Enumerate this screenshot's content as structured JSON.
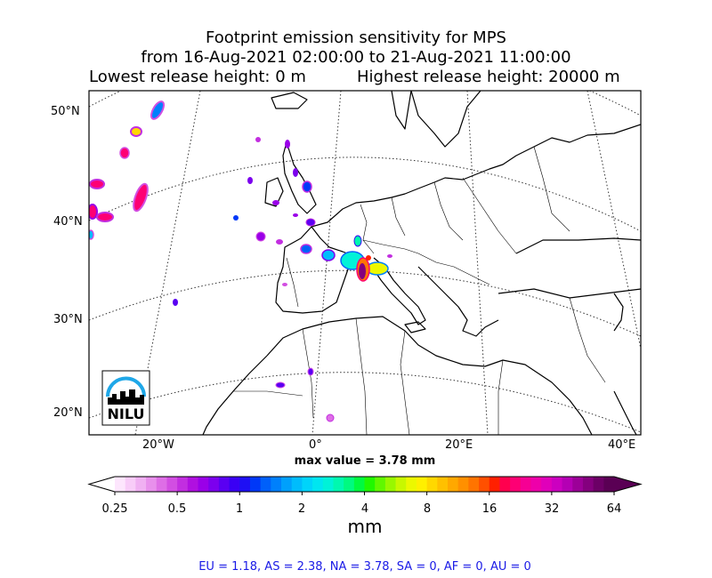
{
  "title": {
    "line1": "Footprint emission sensitivity for MPS",
    "line2": "from 16-Aug-2021 02:00:00 to 21-Aug-2021 11:00:00",
    "lowest": "Lowest release height: 0 m",
    "highest": "Highest release height: 20000 m"
  },
  "axes": {
    "lat_labels": [
      "50°N",
      "40°N",
      "30°N",
      "20°N"
    ],
    "lon_labels": [
      "20°W",
      "0°",
      "20°E",
      "40°E"
    ]
  },
  "logo": {
    "text": "NILU"
  },
  "max_value": "max value = 3.78 mm",
  "colorbar": {
    "ticks": [
      "0.25",
      "0.5",
      "1",
      "2",
      "4",
      "8",
      "16",
      "32",
      "64"
    ],
    "unit": "mm",
    "colors": [
      "#fde6fd",
      "#f8ccf8",
      "#f0b0f2",
      "#e890ec",
      "#de6ee6",
      "#d24ee2",
      "#c22ee0",
      "#b010e0",
      "#9a00e8",
      "#7c00ee",
      "#5a00f2",
      "#3a00f4",
      "#1e10f4",
      "#0038f8",
      "#0060fa",
      "#0080fc",
      "#00a0fc",
      "#00bcfc",
      "#00d4fa",
      "#00e6f0",
      "#00f2d8",
      "#00f8b0",
      "#00fa80",
      "#00fa40",
      "#20f800",
      "#60f800",
      "#98f800",
      "#c8f800",
      "#ecf800",
      "#fff000",
      "#ffd800",
      "#ffc000",
      "#ffa800",
      "#ff9000",
      "#ff7400",
      "#ff5000",
      "#ff2000",
      "#ff004e",
      "#fe0074",
      "#f60094",
      "#ee00aa",
      "#e000ba",
      "#cc00c0",
      "#b400b4",
      "#9c0098",
      "#84007e",
      "#6c0066",
      "#5a0054"
    ]
  },
  "summary": "EU = 1.18,  AS = 2.38,  NA = 3.78,  SA = 0,  AF = 0,  AU = 0"
}
